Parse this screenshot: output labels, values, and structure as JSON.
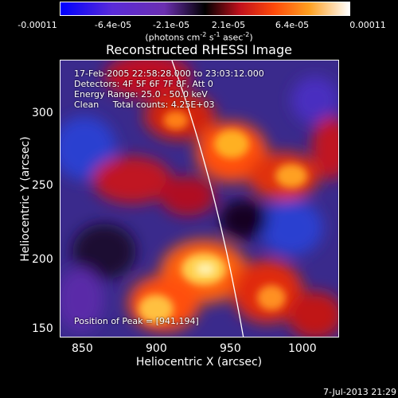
{
  "colorbar": {
    "ticks": [
      "-0.00011",
      "-6.4e-05",
      "-2.1e-05",
      "2.1e-05",
      "6.4e-05",
      "0.00011"
    ],
    "units_prefix": "(photons cm",
    "units_sup1": "-2",
    "units_mid": " s",
    "units_sup2": "-1",
    "units_mid2": " asec",
    "units_sup3": "-2",
    "units_suffix": ")"
  },
  "title": "Reconstructed RHESSI Image",
  "annotations": {
    "time_range": "17-Feb-2005 22:58:28.000 to 23:03:12.000",
    "detectors": "Detectors: 4F 5F 6F 7F 8F, Att 0",
    "energy": "Energy Range: 25.0 - 50.0 keV",
    "clean": "Clean     Total counts: 4.25E+03",
    "peak": "Position of Peak = [941,194]"
  },
  "x_axis": {
    "label": "Heliocentric X (arcsec)",
    "ticks": [
      "850",
      "900",
      "950",
      "1000"
    ]
  },
  "y_axis": {
    "label": "Heliocentric Y (arcsec)",
    "ticks": [
      "150",
      "200",
      "250",
      "300"
    ]
  },
  "timestamp": "7-Jul-2013 21:29",
  "colors": {
    "background": "#000000",
    "limb_line": "#ffffff"
  }
}
